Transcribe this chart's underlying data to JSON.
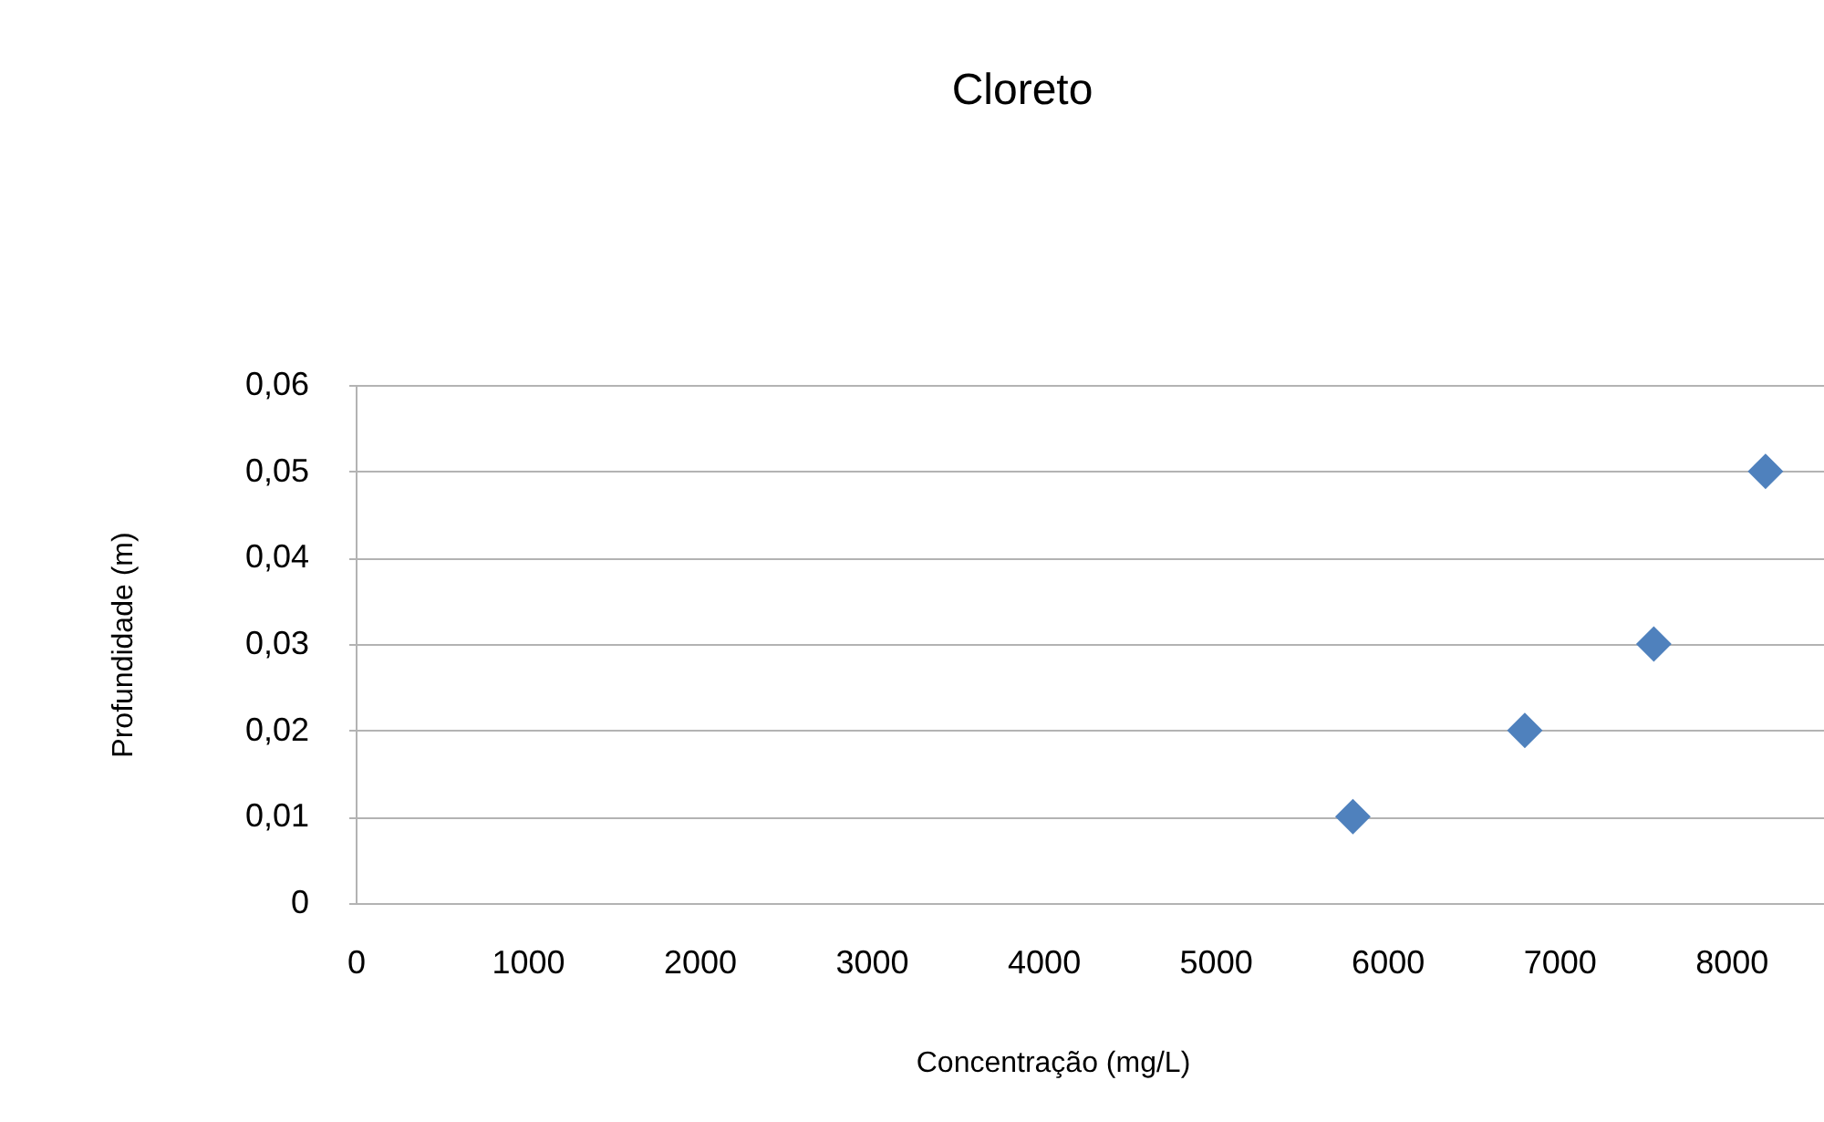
{
  "chart_data": {
    "type": "scatter",
    "title": "Cloreto",
    "xlabel": "Concentração (mg/L)",
    "ylabel": "Profundidade (m)",
    "x": [
      5800,
      6800,
      7550,
      8200
    ],
    "values": [
      0.01,
      0.02,
      0.03,
      0.05
    ],
    "color": "#4f81bd",
    "marker": "diamond",
    "xlim": [
      0,
      8540
    ],
    "xticks": [
      0,
      1000,
      2000,
      3000,
      4000,
      5000,
      6000,
      7000,
      8000
    ],
    "ylim": [
      0,
      0.06
    ],
    "yticks": [
      0,
      {
        "value": 0.01,
        "label": "0,01"
      },
      {
        "value": 0.02,
        "label": "0,02"
      },
      {
        "value": 0.03,
        "label": "0,03"
      },
      {
        "value": 0.04,
        "label": "0,04"
      },
      {
        "value": 0.05,
        "label": "0,05"
      },
      {
        "value": 0.06,
        "label": "0,06"
      }
    ],
    "grid": "y"
  }
}
